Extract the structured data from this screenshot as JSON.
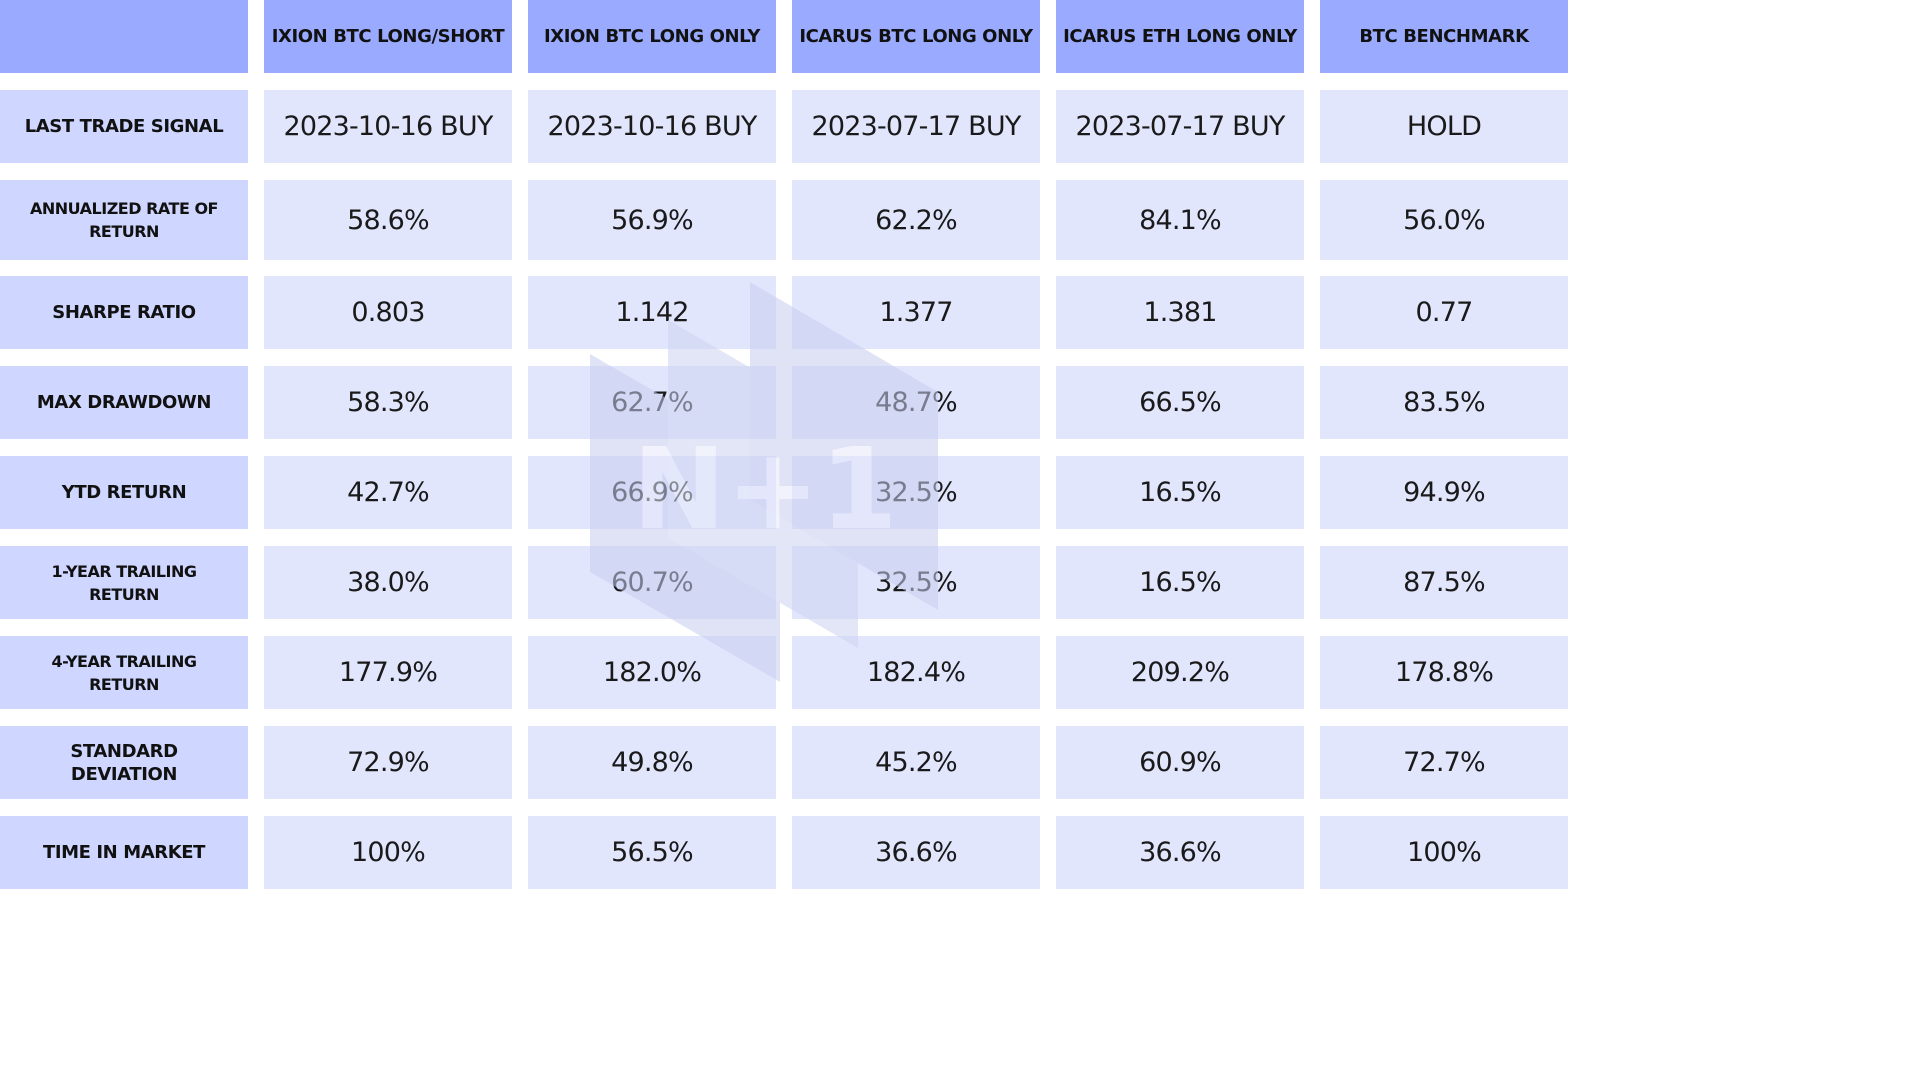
{
  "chart_data": {
    "type": "table",
    "corner": "",
    "columns": [
      "IXION BTC LONG/SHORT",
      "IXION BTC LONG ONLY",
      "ICARUS BTC LONG ONLY",
      "ICARUS ETH LONG ONLY",
      "BTC BENCHMARK"
    ],
    "rows": [
      {
        "label": "LAST TRADE SIGNAL",
        "values": [
          "2023-10-16 BUY",
          "2023-10-16 BUY",
          "2023-07-17 BUY",
          "2023-07-17 BUY",
          "HOLD"
        ]
      },
      {
        "label": "ANNUALIZED RATE OF RETURN",
        "values": [
          "58.6%",
          "56.9%",
          "62.2%",
          "84.1%",
          "56.0%"
        ]
      },
      {
        "label": "SHARPE RATIO",
        "values": [
          "0.803",
          "1.142",
          "1.377",
          "1.381",
          "0.77"
        ]
      },
      {
        "label": "MAX DRAWDOWN",
        "values": [
          "58.3%",
          "62.7%",
          "48.7%",
          "66.5%",
          "83.5%"
        ]
      },
      {
        "label": "YTD RETURN",
        "values": [
          "42.7%",
          "66.9%",
          "32.5%",
          "16.5%",
          "94.9%"
        ]
      },
      {
        "label": "1-YEAR TRAILING RETURN",
        "values": [
          "38.0%",
          "60.7%",
          "32.5%",
          "16.5%",
          "87.5%"
        ]
      },
      {
        "label": "4-YEAR TRAILING RETURN",
        "values": [
          "177.9%",
          "182.0%",
          "182.4%",
          "209.2%",
          "178.8%"
        ]
      },
      {
        "label": "STANDARD DEVIATION",
        "values": [
          "72.9%",
          "49.8%",
          "45.2%",
          "60.9%",
          "72.7%"
        ]
      },
      {
        "label": "TIME IN MARKET",
        "values": [
          "100%",
          "56.5%",
          "36.6%",
          "36.6%",
          "100%"
        ]
      }
    ]
  },
  "watermark": {
    "text": "N+1",
    "icon": "n-plus-1-logo-icon"
  },
  "colors": {
    "header_bg": "#99aaff",
    "row_label_bg": "#cfd6ff",
    "cell_bg": "#e2e6fd",
    "text": "#111111",
    "watermark": "#c7cdef"
  }
}
